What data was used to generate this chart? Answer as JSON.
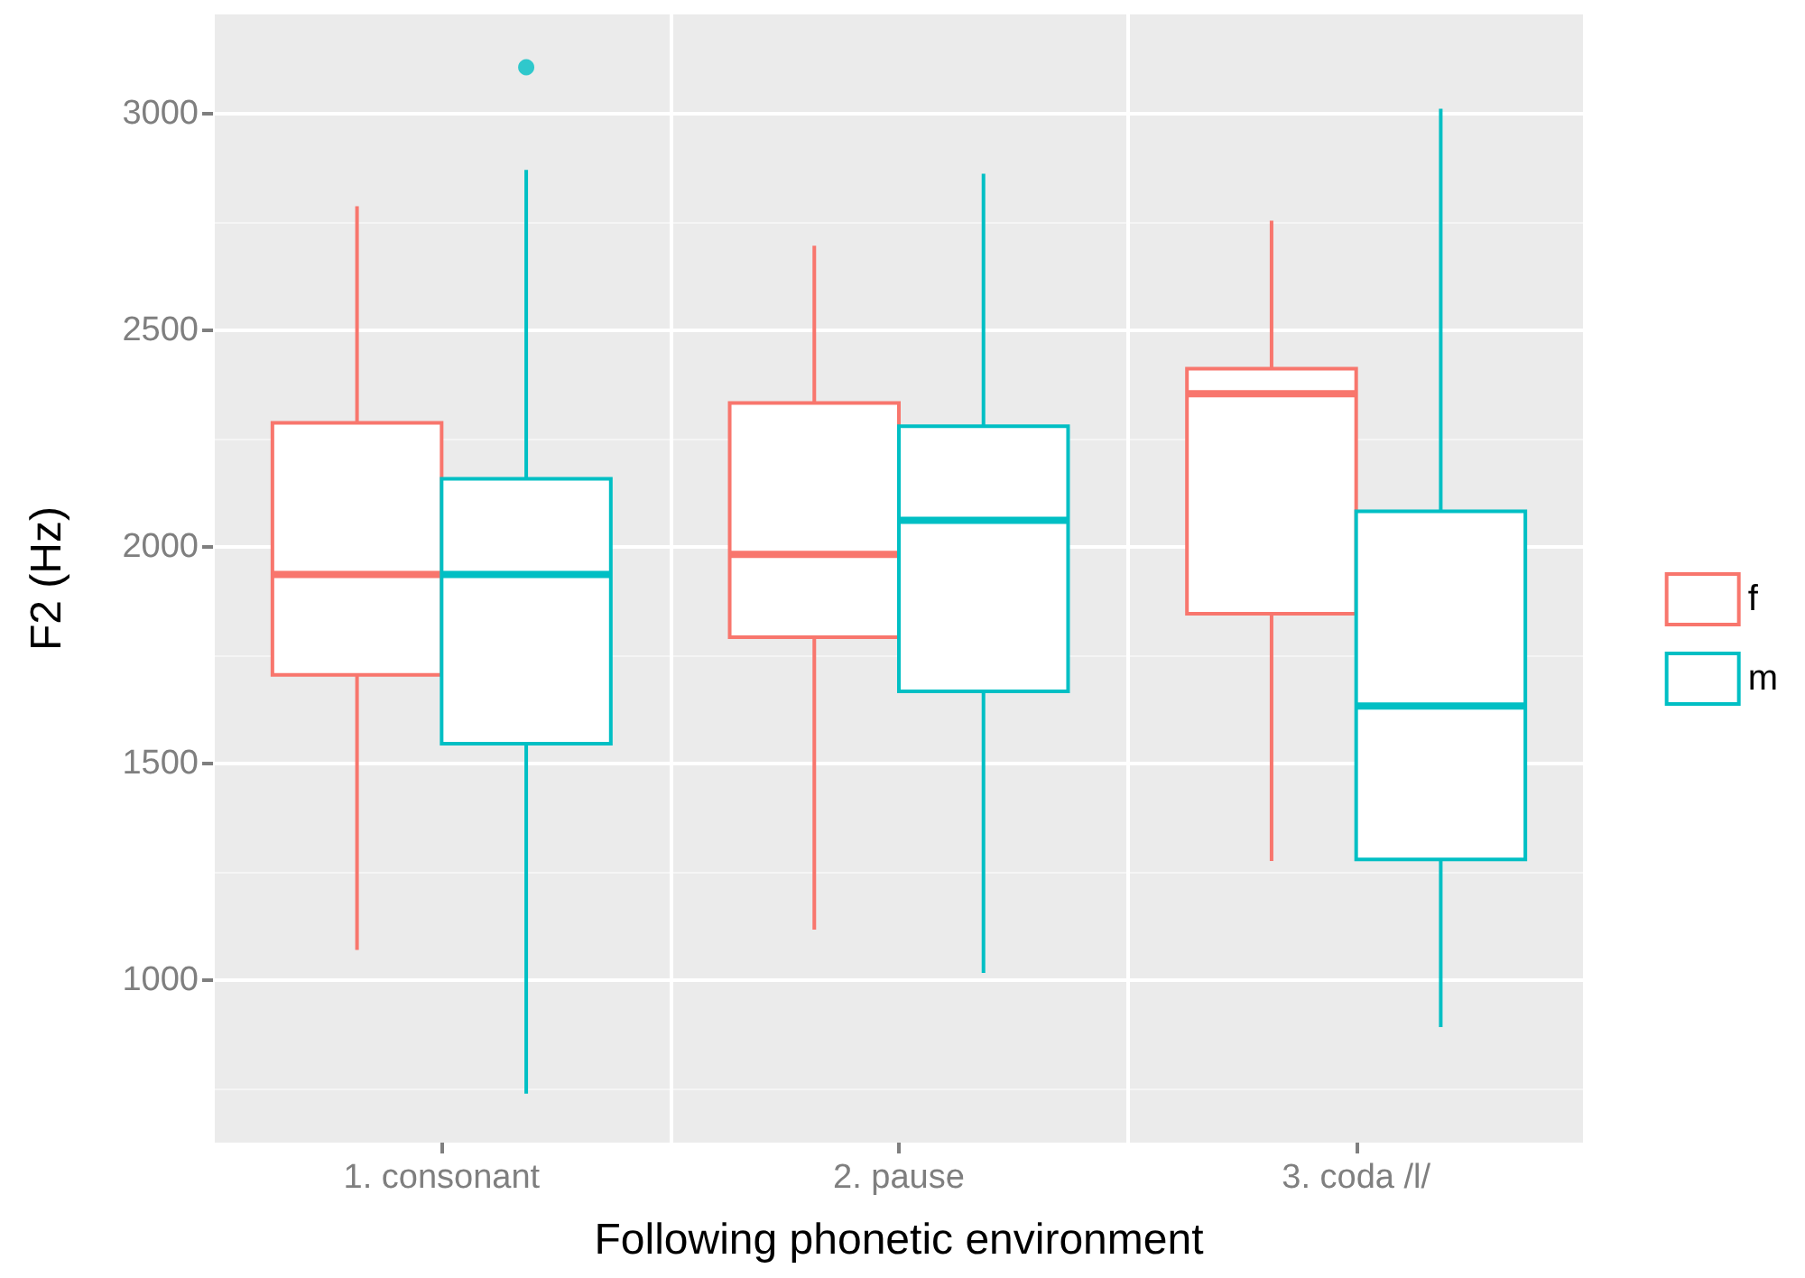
{
  "chart_data": {
    "type": "box",
    "xlabel": "Following phonetic environment",
    "ylabel": "F2 (Hz)",
    "categories": [
      "1. consonant",
      "2. pause",
      "3. coda /l/"
    ],
    "series": [
      {
        "name": "f",
        "color": "#f8766d",
        "boxes": [
          {
            "low": 1070,
            "q1": 1705,
            "median": 1937,
            "q3": 2287,
            "high": 2787
          },
          {
            "low": 1117,
            "q1": 1792,
            "median": 1983,
            "q3": 2333,
            "high": 2696
          },
          {
            "low": 1275,
            "q1": 1846,
            "median": 2354,
            "q3": 2412,
            "high": 2754
          }
        ]
      },
      {
        "name": "m",
        "color": "#00bfc4",
        "boxes": [
          {
            "low": 738,
            "q1": 1546,
            "median": 1937,
            "q3": 2158,
            "high": 2871,
            "outliers": [
              3108
            ]
          },
          {
            "low": 1017,
            "q1": 1667,
            "median": 2062,
            "q3": 2279,
            "high": 2862
          },
          {
            "low": 892,
            "q1": 1279,
            "median": 1633,
            "q3": 2083,
            "high": 3012
          }
        ]
      }
    ],
    "ylim": [
      625,
      3230
    ],
    "yticks": [
      1000,
      1500,
      2000,
      2500,
      3000
    ],
    "grid": true,
    "legend": "right"
  }
}
